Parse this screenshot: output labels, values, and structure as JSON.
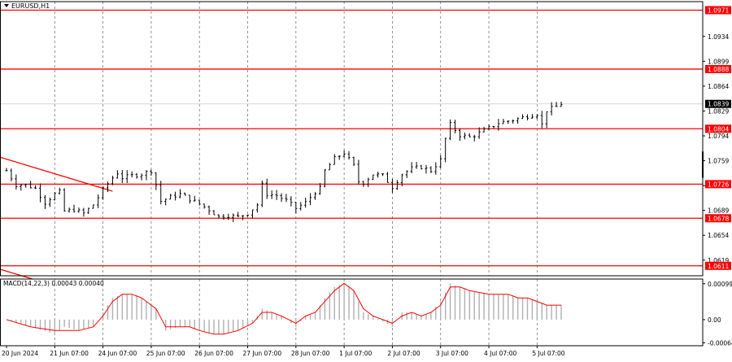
{
  "window": {
    "symbol_title": "EURUSD,H1"
  },
  "colors": {
    "background": "#ffffff",
    "grid": "#777777",
    "frame": "#000000",
    "candle": "#000000",
    "level_line": "#ff0000",
    "level_badge": "#ff0000",
    "current_badge": "#000000",
    "macd_hist": "#b0b0b0",
    "macd_signal": "#ff0000",
    "trendline": "#ff0000"
  },
  "chart_data": [
    {
      "type": "candlestick",
      "name": "EURUSD,H1",
      "ylim": [
        1.0597,
        1.0983
      ],
      "y_ticks": [
        "1.0934",
        "1.0899",
        "1.0864",
        "1.0829",
        "1.0794",
        "1.0759",
        "1.0724",
        "1.0689",
        "1.0654",
        "1.0619"
      ],
      "levels": [
        {
          "label": "1.0971",
          "value": 1.0971
        },
        {
          "label": "1.0888",
          "value": 1.0888
        },
        {
          "label": "1.0804",
          "value": 1.0804
        },
        {
          "label": "1.0726",
          "value": 1.0726
        },
        {
          "label": "1.0678",
          "value": 1.0678
        },
        {
          "label": "1.0611",
          "value": 1.0611
        }
      ],
      "current_price": {
        "label": "1.0839",
        "value": 1.0839
      },
      "x_labels": [
        "20 Jun 2024",
        "21 Jun 07:00",
        "24 Jun 07:00",
        "25 Jun 07:00",
        "26 Jun 07:00",
        "27 Jun 07:00",
        "28 Jun 07:00",
        "1 Jul 07:00",
        "2 Jul 07:00",
        "3 Jul 07:00",
        "4 Jul 07:00",
        "5 Jul 07:00"
      ],
      "trendline": {
        "from": [
          0,
          1.0764
        ],
        "to": [
          22,
          1.0716
        ]
      },
      "price_path": [
        [
          0,
          1.0745
        ],
        [
          2,
          1.0725
        ],
        [
          4,
          1.0725
        ],
        [
          6,
          1.072
        ],
        [
          8,
          1.07
        ],
        [
          10,
          1.0712
        ],
        [
          11,
          1.0715
        ],
        [
          12,
          1.0688
        ],
        [
          14,
          1.069
        ],
        [
          16,
          1.0685
        ],
        [
          18,
          1.0697
        ],
        [
          20,
          1.0718
        ],
        [
          22,
          1.0735
        ],
        [
          23,
          1.0742
        ],
        [
          24,
          1.0735
        ],
        [
          26,
          1.0738
        ],
        [
          28,
          1.074
        ],
        [
          30,
          1.0745
        ],
        [
          31,
          1.0725
        ],
        [
          32,
          1.0702
        ],
        [
          34,
          1.0708
        ],
        [
          36,
          1.0712
        ],
        [
          38,
          1.0705
        ],
        [
          40,
          1.0698
        ],
        [
          42,
          1.069
        ],
        [
          44,
          1.068
        ],
        [
          46,
          1.0682
        ],
        [
          48,
          1.068
        ],
        [
          50,
          1.0685
        ],
        [
          52,
          1.0697
        ],
        [
          53,
          1.0725
        ],
        [
          54,
          1.0712
        ],
        [
          56,
          1.071
        ],
        [
          58,
          1.0703
        ],
        [
          60,
          1.0692
        ],
        [
          62,
          1.07
        ],
        [
          64,
          1.0715
        ],
        [
          65,
          1.072
        ],
        [
          66,
          1.0745
        ],
        [
          68,
          1.0762
        ],
        [
          70,
          1.077
        ],
        [
          72,
          1.0752
        ],
        [
          73,
          1.073
        ],
        [
          74,
          1.0728
        ],
        [
          76,
          1.074
        ],
        [
          78,
          1.0738
        ],
        [
          80,
          1.0722
        ],
        [
          82,
          1.074
        ],
        [
          84,
          1.0748
        ],
        [
          86,
          1.075
        ],
        [
          88,
          1.0745
        ],
        [
          90,
          1.076
        ],
        [
          91,
          1.079
        ],
        [
          92,
          1.081
        ],
        [
          94,
          1.0795
        ],
        [
          96,
          1.0792
        ],
        [
          98,
          1.0798
        ],
        [
          100,
          1.0805
        ],
        [
          102,
          1.0812
        ],
        [
          104,
          1.0815
        ],
        [
          106,
          1.0818
        ],
        [
          108,
          1.0822
        ],
        [
          110,
          1.0825
        ],
        [
          111,
          1.081
        ],
        [
          112,
          1.083
        ],
        [
          114,
          1.0835
        ],
        [
          115,
          1.0839
        ]
      ]
    },
    {
      "type": "histogram",
      "name": "MACD(14,22,3) 0.00043 0.00040",
      "label": "MACD(14,22,3) 0.00043 0.00040",
      "ylim": [
        -0.00072,
        0.00112
      ],
      "y_ticks": [
        "0.00099",
        "0.00",
        "-0.00064"
      ],
      "hist_path": [
        [
          0,
          0.0
        ],
        [
          5,
          -0.0002
        ],
        [
          10,
          -0.0004
        ],
        [
          12,
          -0.0002
        ],
        [
          15,
          -0.0003
        ],
        [
          18,
          -0.0002
        ],
        [
          20,
          0.0002
        ],
        [
          22,
          0.0006
        ],
        [
          24,
          0.0007
        ],
        [
          26,
          0.0007
        ],
        [
          28,
          0.0006
        ],
        [
          31,
          0.0003
        ],
        [
          33,
          -0.0003
        ],
        [
          36,
          -0.0002
        ],
        [
          38,
          -0.0002
        ],
        [
          40,
          -0.0003
        ],
        [
          43,
          -0.0004
        ],
        [
          45,
          -0.0004
        ],
        [
          48,
          -0.0003
        ],
        [
          51,
          -0.0001
        ],
        [
          53,
          0.0003
        ],
        [
          55,
          0.0002
        ],
        [
          57,
          0.0001
        ],
        [
          60,
          -0.0002
        ],
        [
          62,
          0.0001
        ],
        [
          64,
          0.0002
        ],
        [
          66,
          0.0006
        ],
        [
          68,
          0.0009
        ],
        [
          70,
          0.001
        ],
        [
          72,
          0.0008
        ],
        [
          74,
          0.0002
        ],
        [
          76,
          0.0001
        ],
        [
          80,
          -0.0002
        ],
        [
          82,
          0.0002
        ],
        [
          84,
          0.0002
        ],
        [
          86,
          0.0001
        ],
        [
          88,
          0.0002
        ],
        [
          90,
          0.0005
        ],
        [
          92,
          0.001
        ],
        [
          94,
          0.0009
        ],
        [
          96,
          0.0008
        ],
        [
          100,
          0.0007
        ],
        [
          104,
          0.0007
        ],
        [
          106,
          0.0006
        ],
        [
          108,
          0.0006
        ],
        [
          112,
          0.0004
        ],
        [
          115,
          0.0004
        ]
      ],
      "signal_path": [
        [
          0,
          0.0
        ],
        [
          5,
          -0.0002
        ],
        [
          10,
          -0.0003
        ],
        [
          12,
          -0.0003
        ],
        [
          15,
          -0.0003
        ],
        [
          18,
          -0.0002
        ],
        [
          20,
          0.0001
        ],
        [
          22,
          0.0005
        ],
        [
          24,
          0.0007
        ],
        [
          26,
          0.0007
        ],
        [
          28,
          0.0006
        ],
        [
          31,
          0.0003
        ],
        [
          33,
          -0.0002
        ],
        [
          36,
          -0.0002
        ],
        [
          38,
          -0.0002
        ],
        [
          40,
          -0.0003
        ],
        [
          43,
          -0.0004
        ],
        [
          45,
          -0.0004
        ],
        [
          48,
          -0.0003
        ],
        [
          51,
          -0.0001
        ],
        [
          53,
          0.0002
        ],
        [
          55,
          0.0002
        ],
        [
          57,
          0.0001
        ],
        [
          60,
          -0.0001
        ],
        [
          62,
          0.0001
        ],
        [
          64,
          0.0002
        ],
        [
          66,
          0.0005
        ],
        [
          68,
          0.0008
        ],
        [
          70,
          0.001
        ],
        [
          72,
          0.0008
        ],
        [
          74,
          0.0003
        ],
        [
          76,
          0.0001
        ],
        [
          80,
          -0.0001
        ],
        [
          82,
          0.0001
        ],
        [
          84,
          0.0002
        ],
        [
          86,
          0.0001
        ],
        [
          88,
          0.0002
        ],
        [
          90,
          0.0004
        ],
        [
          92,
          0.0009
        ],
        [
          94,
          0.0009
        ],
        [
          96,
          0.0008
        ],
        [
          100,
          0.0007
        ],
        [
          104,
          0.0007
        ],
        [
          106,
          0.0006
        ],
        [
          108,
          0.0006
        ],
        [
          112,
          0.0004
        ],
        [
          115,
          0.0004
        ]
      ]
    }
  ]
}
